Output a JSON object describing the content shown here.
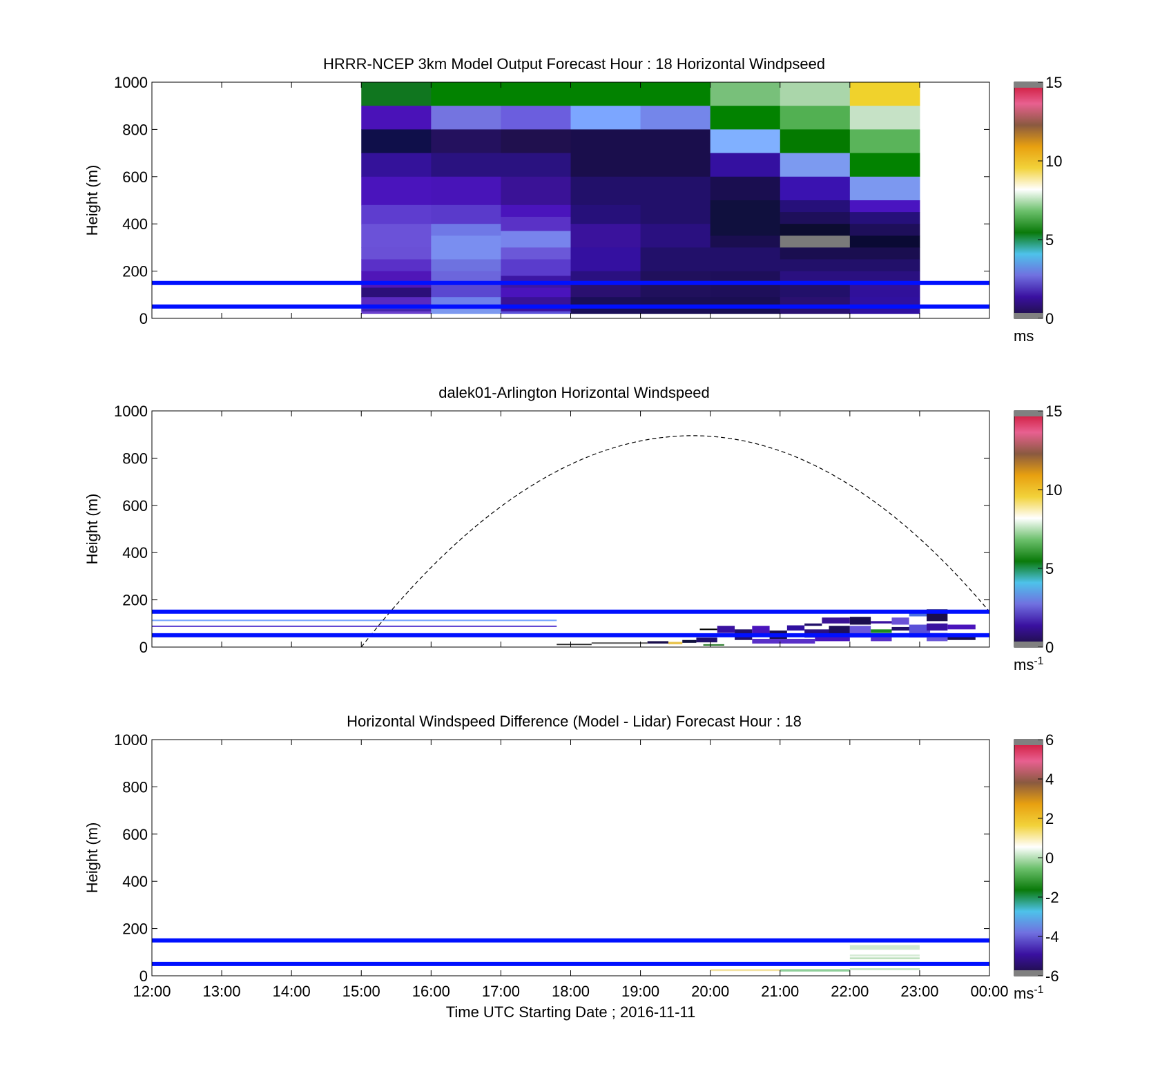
{
  "chart_data": [
    {
      "type": "heatmap",
      "title": "HRRR-NCEP 3km Model Output   Forecast Hour : 18 Horizontal Windpseed",
      "ylabel": "Height (m)",
      "xlabel": "",
      "x_range_hours": [
        12,
        24
      ],
      "ylim": [
        0,
        1000
      ],
      "yticks": [
        "0",
        "200",
        "400",
        "600",
        "800",
        "1000"
      ],
      "colorbar": {
        "ticks": [
          "0",
          "5",
          "10",
          "15"
        ],
        "unit": "ms",
        "range": [
          0,
          15
        ]
      },
      "reference_lines_m": [
        150,
        50
      ],
      "columns": [
        {
          "x0": 15,
          "x1": 16,
          "cells": [
            [
              900,
              1000,
              "#10761f"
            ],
            [
              800,
              900,
              "#4a12b8"
            ],
            [
              700,
              800,
              "#0f0f4a"
            ],
            [
              600,
              700,
              "#34129a"
            ],
            [
              480,
              600,
              "#4a14bc"
            ],
            [
              400,
              480,
              "#5e3dcf"
            ],
            [
              300,
              400,
              "#6b52d8"
            ],
            [
              250,
              300,
              "#6a50d6"
            ],
            [
              200,
              250,
              "#5a30c8"
            ],
            [
              130,
              200,
              "#5016b8"
            ],
            [
              90,
              130,
              "#2c0f7a"
            ],
            [
              50,
              90,
              "#5a2ac0"
            ],
            [
              40,
              50,
              "#6650d8"
            ],
            [
              30,
              40,
              "#4422aa"
            ],
            [
              20,
              30,
              "#6b40cc"
            ]
          ]
        },
        {
          "x0": 16,
          "x1": 17,
          "cells": [
            [
              900,
              1000,
              "#028200"
            ],
            [
              800,
              900,
              "#7474e0"
            ],
            [
              700,
              800,
              "#24115e"
            ],
            [
              600,
              700,
              "#2a1280"
            ],
            [
              480,
              600,
              "#4814b8"
            ],
            [
              400,
              480,
              "#5a3acb"
            ],
            [
              350,
              400,
              "#6f78e6"
            ],
            [
              250,
              350,
              "#7a8ef0"
            ],
            [
              200,
              250,
              "#6e72e0"
            ],
            [
              150,
              200,
              "#6c66dc"
            ],
            [
              90,
              150,
              "#5a48d0"
            ],
            [
              50,
              90,
              "#6f82ea"
            ],
            [
              40,
              50,
              "#5c56d6"
            ],
            [
              20,
              40,
              "#7c98f0"
            ]
          ]
        },
        {
          "x0": 17,
          "x1": 18,
          "cells": [
            [
              900,
              1000,
              "#028200"
            ],
            [
              800,
              900,
              "#6b5ede"
            ],
            [
              700,
              800,
              "#20104e"
            ],
            [
              600,
              700,
              "#2a1280"
            ],
            [
              480,
              600,
              "#3a1296"
            ],
            [
              430,
              480,
              "#4a14bc"
            ],
            [
              370,
              430,
              "#5a32c6"
            ],
            [
              300,
              370,
              "#7884ec"
            ],
            [
              250,
              300,
              "#6b58d8"
            ],
            [
              180,
              250,
              "#5a3ccc"
            ],
            [
              130,
              180,
              "#3c16a4"
            ],
            [
              90,
              130,
              "#4a14bc"
            ],
            [
              50,
              90,
              "#3a1296"
            ],
            [
              30,
              50,
              "#3a10a0"
            ],
            [
              20,
              30,
              "#5a50d8"
            ]
          ]
        },
        {
          "x0": 18,
          "x1": 19,
          "cells": [
            [
              900,
              1000,
              "#028200"
            ],
            [
              800,
              900,
              "#7ca6ff"
            ],
            [
              600,
              800,
              "#1a0e4c"
            ],
            [
              480,
              600,
              "#22106a"
            ],
            [
              400,
              480,
              "#26107a"
            ],
            [
              300,
              400,
              "#3a129c"
            ],
            [
              200,
              300,
              "#3410a0"
            ],
            [
              150,
              200,
              "#2a1080"
            ],
            [
              90,
              150,
              "#2a1070"
            ],
            [
              20,
              90,
              "#1a0e58"
            ]
          ]
        },
        {
          "x0": 19,
          "x1": 20,
          "cells": [
            [
              900,
              1000,
              "#028200"
            ],
            [
              800,
              900,
              "#7486ea"
            ],
            [
              600,
              800,
              "#1a0e4c"
            ],
            [
              400,
              600,
              "#22106a"
            ],
            [
              300,
              400,
              "#2a1080"
            ],
            [
              200,
              300,
              "#22106a"
            ],
            [
              90,
              200,
              "#20105c"
            ],
            [
              20,
              90,
              "#1a0e54"
            ]
          ]
        },
        {
          "x0": 20,
          "x1": 21,
          "cells": [
            [
              900,
              1000,
              "#78c07a"
            ],
            [
              800,
              900,
              "#028200"
            ],
            [
              700,
              800,
              "#80b0ff"
            ],
            [
              600,
              700,
              "#3410a0"
            ],
            [
              500,
              600,
              "#1a0e50"
            ],
            [
              350,
              500,
              "#10103e"
            ],
            [
              300,
              350,
              "#1a0e50"
            ],
            [
              200,
              300,
              "#22106a"
            ],
            [
              90,
              200,
              "#1e0f5a"
            ],
            [
              20,
              90,
              "#1a0e52"
            ]
          ]
        },
        {
          "x0": 21,
          "x1": 22,
          "cells": [
            [
              900,
              1000,
              "#aad6aa"
            ],
            [
              800,
              900,
              "#52b052"
            ],
            [
              700,
              800,
              "#047a00"
            ],
            [
              600,
              700,
              "#7c9af0"
            ],
            [
              500,
              600,
              "#3a12b0"
            ],
            [
              450,
              500,
              "#26107a"
            ],
            [
              400,
              450,
              "#1e0f5a"
            ],
            [
              350,
              400,
              "#0c0c30"
            ],
            [
              300,
              350,
              "#7a7a7a"
            ],
            [
              250,
              300,
              "#1a0e50"
            ],
            [
              200,
              250,
              "#22106a"
            ],
            [
              150,
              200,
              "#2a1080"
            ],
            [
              90,
              150,
              "#22106a"
            ],
            [
              20,
              90,
              "#2a1070"
            ]
          ]
        },
        {
          "x0": 22,
          "x1": 23,
          "cells": [
            [
              900,
              1000,
              "#f0d22c"
            ],
            [
              800,
              900,
              "#c6e2c6"
            ],
            [
              700,
              800,
              "#5ab45a"
            ],
            [
              600,
              700,
              "#028200"
            ],
            [
              500,
              600,
              "#7c98f0"
            ],
            [
              450,
              500,
              "#4a14c0"
            ],
            [
              400,
              450,
              "#26107a"
            ],
            [
              350,
              400,
              "#1e0f5a"
            ],
            [
              300,
              350,
              "#0a0a34"
            ],
            [
              250,
              300,
              "#1a0e50"
            ],
            [
              200,
              250,
              "#22106a"
            ],
            [
              150,
              200,
              "#2a1080"
            ],
            [
              90,
              150,
              "#30109a"
            ],
            [
              20,
              90,
              "#3010a0"
            ]
          ]
        }
      ]
    },
    {
      "type": "heatmap",
      "title": "dalek01-Arlington  Horizontal Windspeed",
      "ylabel": "Height (m)",
      "xlabel": "",
      "x_range_hours": [
        12,
        24
      ],
      "ylim": [
        0,
        1000
      ],
      "yticks": [
        "0",
        "200",
        "400",
        "600",
        "800",
        "1000"
      ],
      "colorbar": {
        "ticks": [
          "0",
          "5",
          "10",
          "15"
        ],
        "unit": "ms",
        "unit_sup": "-1",
        "range": [
          0,
          15
        ]
      },
      "reference_lines_m": [
        150,
        50
      ],
      "daylight_curve": {
        "start_hour": 15,
        "peak_hour": 19.75,
        "peak_m": 895,
        "end_hour": 24,
        "end_m": 150
      },
      "lidar_strips": [
        [
          12,
          17.8,
          110,
          116,
          "#7aa8ff"
        ],
        [
          12,
          17.8,
          85,
          91,
          "#5a40d0"
        ],
        [
          17.8,
          18.3,
          10,
          14,
          "#2b2b2b"
        ],
        [
          18.3,
          19.1,
          14,
          20,
          "#5a5a5a"
        ],
        [
          19.1,
          19.4,
          15,
          25,
          "#1a0e4c"
        ],
        [
          19.4,
          19.6,
          12,
          22,
          "#e8c24a"
        ],
        [
          19.6,
          19.8,
          18,
          30,
          "#10103e"
        ],
        [
          19.8,
          20.1,
          20,
          40,
          "#22106a"
        ],
        [
          19.9,
          20.2,
          6,
          12,
          "#2a7a2a"
        ],
        [
          19.85,
          20.1,
          72,
          78,
          "#000000"
        ],
        [
          20.1,
          20.35,
          60,
          90,
          "#3a12a0"
        ],
        [
          20.35,
          20.6,
          30,
          75,
          "#22106a"
        ],
        [
          20.6,
          20.85,
          45,
          90,
          "#4a14bc"
        ],
        [
          20.85,
          21.1,
          35,
          70,
          "#1a0e4c"
        ],
        [
          21.1,
          21.35,
          70,
          92,
          "#3010a0"
        ],
        [
          20.6,
          21.5,
          15,
          35,
          "#5a30c8"
        ],
        [
          21.35,
          21.7,
          40,
          75,
          "#2a1080"
        ],
        [
          21.35,
          21.6,
          90,
          100,
          "#22106a"
        ],
        [
          21.6,
          22.0,
          100,
          125,
          "#3a1296"
        ],
        [
          21.7,
          22.0,
          55,
          90,
          "#1e0f5a"
        ],
        [
          21.5,
          22.0,
          25,
          45,
          "#4a14bc"
        ],
        [
          22.0,
          22.3,
          95,
          128,
          "#1a0e4c"
        ],
        [
          22.0,
          22.3,
          40,
          90,
          "#6b58d8"
        ],
        [
          22.3,
          22.6,
          100,
          110,
          "#3a12a0"
        ],
        [
          22.3,
          22.6,
          60,
          75,
          "#1e8a1e"
        ],
        [
          22.3,
          22.6,
          25,
          45,
          "#5a30c8"
        ],
        [
          22.6,
          22.85,
          95,
          125,
          "#6b52d8"
        ],
        [
          22.6,
          22.9,
          70,
          85,
          "#22106a"
        ],
        [
          22.6,
          22.85,
          40,
          60,
          "#7c98f0"
        ],
        [
          22.85,
          23.1,
          130,
          150,
          "#4a70e0"
        ],
        [
          22.85,
          23.1,
          100,
          125,
          "#ffffff"
        ],
        [
          22.85,
          23.15,
          40,
          95,
          "#5a50d8"
        ],
        [
          23.1,
          23.4,
          110,
          160,
          "#1a0e4c"
        ],
        [
          23.1,
          23.4,
          70,
          100,
          "#3a12a0"
        ],
        [
          23.1,
          23.4,
          25,
          60,
          "#6b58d8"
        ],
        [
          23.4,
          23.8,
          75,
          95,
          "#4a14bc"
        ],
        [
          23.4,
          23.8,
          30,
          55,
          "#1a0e4c"
        ]
      ]
    },
    {
      "type": "heatmap",
      "title": "Horizontal Windspeed Difference (Model - Lidar) Forecast Hour : 18",
      "ylabel": "Height (m)",
      "xlabel": "Time UTC  Starting Date ; 2016-11-11",
      "x_range_hours": [
        12,
        24
      ],
      "xticks": [
        "12:00",
        "13:00",
        "14:00",
        "15:00",
        "16:00",
        "17:00",
        "18:00",
        "19:00",
        "20:00",
        "21:00",
        "22:00",
        "23:00",
        "00:00"
      ],
      "ylim": [
        0,
        1000
      ],
      "yticks": [
        "0",
        "200",
        "400",
        "600",
        "800",
        "1000"
      ],
      "colorbar": {
        "ticks": [
          "-6",
          "-4",
          "-2",
          "0",
          "2",
          "4",
          "6"
        ],
        "unit": "ms",
        "unit_sup": "-1",
        "range": [
          -6,
          6
        ]
      },
      "reference_lines_m": [
        150,
        50
      ],
      "diff_strips": [
        [
          20,
          21,
          20,
          28,
          "#f3e2a0"
        ],
        [
          21,
          22,
          18,
          28,
          "#8fcf9a"
        ],
        [
          22,
          23,
          110,
          130,
          "#cfe8cf"
        ],
        [
          22,
          23,
          82,
          90,
          "#d6ecd6"
        ],
        [
          22,
          23,
          70,
          78,
          "#bfe0bf"
        ],
        [
          22,
          23,
          55,
          62,
          "#e2f1e2"
        ],
        [
          22,
          23,
          24,
          32,
          "#c2e2c2"
        ]
      ]
    }
  ],
  "colormaps": {
    "windspeed": [
      "#1c0f3c",
      "#3a10a0",
      "#7070e0",
      "#4ec2ea",
      "#0a7a0a",
      "#6cc06c",
      "#ffffff",
      "#f2d23a",
      "#e8a010",
      "#8a5a40",
      "#e86090",
      "#cc1030"
    ],
    "difference": [
      "#1c0f3c",
      "#3a10a0",
      "#7070e0",
      "#4ec2ea",
      "#0a7a0a",
      "#6cc06c",
      "#ffffff",
      "#f2d23a",
      "#e8a010",
      "#8a5a40",
      "#e86090",
      "#cc1030"
    ],
    "reference_line": "#0010ff"
  }
}
